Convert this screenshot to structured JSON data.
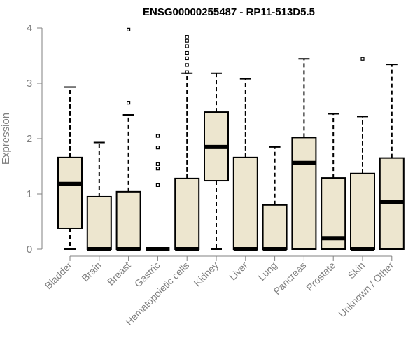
{
  "chart_data": {
    "type": "box",
    "title": "ENSG00000255487 - RP11-513D5.5",
    "xlabel": "",
    "ylabel": "Expression",
    "ylim": [
      0,
      4
    ],
    "yticks": [
      "0",
      "1",
      "2",
      "3",
      "4"
    ],
    "grid": false,
    "colors": {
      "box_fill": "#ede6cf",
      "stroke": "#000000",
      "axis": "#808080",
      "label": "#808080"
    },
    "categories": [
      "Bladder",
      "Brain",
      "Breast",
      "Gastric",
      "Hematopoietic cells",
      "Kidney",
      "Liver",
      "Lung",
      "Pancreas",
      "Prostate",
      "Skin",
      "Unknown / Other"
    ],
    "boxes": [
      {
        "min": 0,
        "q1": 0.38,
        "median": 1.18,
        "q3": 1.66,
        "max": 2.93,
        "outliers": []
      },
      {
        "min": 0,
        "q1": 0,
        "median": 0,
        "q3": 0.95,
        "max": 1.93,
        "outliers": []
      },
      {
        "min": 0,
        "q1": 0,
        "median": 0,
        "q3": 1.04,
        "max": 2.43,
        "outliers": [
          2.65,
          3.97
        ]
      },
      {
        "min": 0,
        "q1": 0,
        "median": 0,
        "q3": 0,
        "max": 0,
        "outliers": [
          1.16,
          1.46,
          1.54,
          1.84,
          2.05
        ]
      },
      {
        "min": 0,
        "q1": 0,
        "median": 0,
        "q3": 1.28,
        "max": 3.18,
        "outliers": [
          3.2,
          3.33,
          3.45,
          3.55,
          3.67,
          3.77,
          3.84
        ]
      },
      {
        "min": 0,
        "q1": 1.24,
        "median": 1.85,
        "q3": 2.48,
        "max": 3.18,
        "outliers": []
      },
      {
        "min": 0,
        "q1": 0,
        "median": 0,
        "q3": 1.66,
        "max": 3.08,
        "outliers": []
      },
      {
        "min": 0,
        "q1": 0,
        "median": 0,
        "q3": 0.8,
        "max": 1.85,
        "outliers": []
      },
      {
        "min": 0,
        "q1": 0,
        "median": 1.56,
        "q3": 2.02,
        "max": 3.44,
        "outliers": []
      },
      {
        "min": 0,
        "q1": 0,
        "median": 0.2,
        "q3": 1.29,
        "max": 2.45,
        "outliers": []
      },
      {
        "min": 0,
        "q1": 0,
        "median": 0,
        "q3": 1.37,
        "max": 2.4,
        "outliers": [
          3.44
        ]
      },
      {
        "min": 0,
        "q1": 0,
        "median": 0.85,
        "q3": 1.65,
        "max": 3.34,
        "outliers": []
      }
    ]
  }
}
